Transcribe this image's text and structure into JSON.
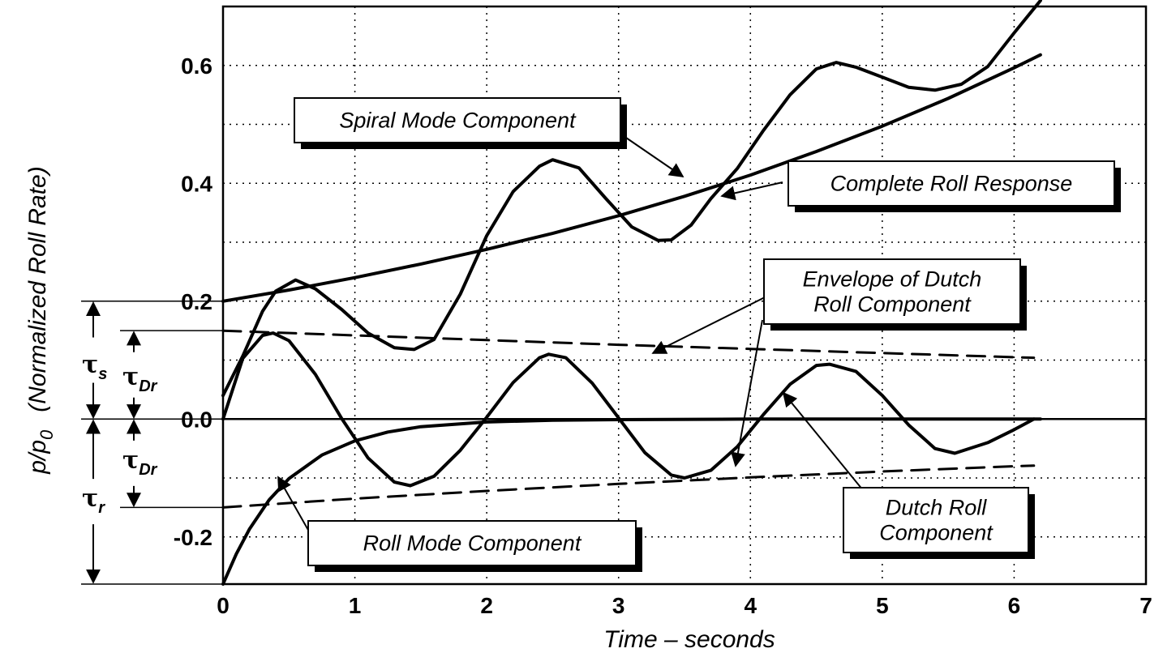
{
  "chart_data": {
    "type": "line",
    "xlabel": "Time – seconds",
    "ylabel_main": "p/p",
    "ylabel_sub": "0",
    "ylabel_note": "(Normalized Roll Rate)",
    "xlim": [
      0,
      7
    ],
    "ylim": [
      -0.28,
      0.7
    ],
    "x_ticks": [
      0,
      1,
      2,
      3,
      4,
      5,
      6,
      7
    ],
    "x_tick_labels": [
      "0",
      "1",
      "2",
      "3",
      "4",
      "5",
      "6",
      "7"
    ],
    "y_ticks": [
      -0.2,
      0.0,
      0.2,
      0.4,
      0.6
    ],
    "y_tick_labels": [
      "-0.2",
      "0.0",
      "0.2",
      "0.4",
      "0.6"
    ],
    "grid": true,
    "series": [
      {
        "name": "Spiral Mode Component",
        "style": "solid",
        "width": 4,
        "x": [
          0,
          0.5,
          1,
          1.5,
          2,
          2.5,
          3,
          3.5,
          4,
          4.5,
          5,
          5.5,
          6,
          6.2
        ],
        "y": [
          0.2,
          0.219,
          0.24,
          0.263,
          0.288,
          0.315,
          0.345,
          0.378,
          0.414,
          0.454,
          0.497,
          0.544,
          0.596,
          0.618
        ]
      },
      {
        "name": "Roll Mode Component",
        "style": "solid",
        "width": 4,
        "x": [
          0,
          0.1,
          0.2,
          0.35,
          0.5,
          0.75,
          1,
          1.25,
          1.5,
          2,
          2.5,
          3,
          4,
          5,
          6,
          6.2
        ],
        "y": [
          -0.28,
          -0.229,
          -0.187,
          -0.137,
          -0.101,
          -0.061,
          -0.037,
          -0.022,
          -0.013,
          -0.005,
          -0.002,
          -0.001,
          0,
          0,
          0,
          0
        ]
      },
      {
        "name": "Dutch Roll Component",
        "style": "solid",
        "width": 4,
        "x": [
          0,
          0.15,
          0.3,
          0.38,
          0.5,
          0.7,
          0.9,
          1.1,
          1.3,
          1.42,
          1.6,
          1.8,
          2,
          2.2,
          2.4,
          2.47,
          2.6,
          2.8,
          3,
          3.2,
          3.4,
          3.5,
          3.7,
          3.9,
          4.1,
          4.3,
          4.5,
          4.6,
          4.8,
          5,
          5.2,
          5.4,
          5.55,
          5.8,
          6,
          6.15
        ],
        "y": [
          0,
          0.103,
          0.142,
          0.146,
          0.133,
          0.076,
          0.001,
          -0.066,
          -0.107,
          -0.113,
          -0.097,
          -0.053,
          0.003,
          0.062,
          0.104,
          0.11,
          0.104,
          0.061,
          0.002,
          -0.057,
          -0.095,
          -0.1,
          -0.087,
          -0.047,
          0.008,
          0.059,
          0.091,
          0.093,
          0.081,
          0.04,
          -0.01,
          -0.05,
          -0.058,
          -0.04,
          -0.018,
          0
        ]
      },
      {
        "name": "Complete Roll Response",
        "style": "solid",
        "width": 4,
        "x": [
          0,
          0.15,
          0.3,
          0.4,
          0.55,
          0.7,
          0.9,
          1.1,
          1.3,
          1.45,
          1.6,
          1.8,
          2,
          2.2,
          2.4,
          2.5,
          2.7,
          2.9,
          3.1,
          3.3,
          3.4,
          3.55,
          3.7,
          3.9,
          4.1,
          4.3,
          4.5,
          4.65,
          4.8,
          5,
          5.2,
          5.4,
          5.6,
          5.8,
          6,
          6.2
        ],
        "y": [
          0.04,
          0.107,
          0.183,
          0.217,
          0.236,
          0.221,
          0.186,
          0.146,
          0.121,
          0.118,
          0.135,
          0.212,
          0.311,
          0.386,
          0.429,
          0.44,
          0.426,
          0.375,
          0.326,
          0.303,
          0.304,
          0.329,
          0.374,
          0.425,
          0.49,
          0.55,
          0.594,
          0.605,
          0.597,
          0.58,
          0.563,
          0.558,
          0.568,
          0.598,
          0.655,
          0.71
        ]
      },
      {
        "name": "Envelope of Dutch Roll Component",
        "style": "dashed",
        "width": 3,
        "x": [
          0,
          1,
          2,
          3,
          4,
          5,
          6,
          6.15
        ],
        "y": [
          0.15,
          0.142,
          0.134,
          0.126,
          0.119,
          0.112,
          0.105,
          0.104
        ]
      },
      {
        "name": "",
        "style": "dashed",
        "width": 3,
        "x": [
          0,
          1,
          2,
          3,
          4,
          5,
          6,
          6.15
        ],
        "y": [
          -0.15,
          -0.135,
          -0.122,
          -0.11,
          -0.099,
          -0.089,
          -0.08,
          -0.079
        ]
      }
    ],
    "callouts": [
      {
        "lines": [
          "Spiral Mode Component"
        ],
        "target": [
          3.45,
          0.41
        ]
      },
      {
        "lines": [
          "Complete Roll Response"
        ],
        "target": [
          3.75,
          0.38
        ]
      },
      {
        "lines": [
          "Envelope of Dutch",
          "Roll Component"
        ],
        "target": [
          3.25,
          0.11
        ]
      },
      {
        "lines": [
          "Roll Mode Component"
        ],
        "target": [
          0.45,
          -0.11
        ]
      },
      {
        "lines": [
          "Dutch Roll",
          "Component"
        ],
        "target": [
          4.2,
          0.045
        ]
      }
    ],
    "time_constants": [
      {
        "symbol": "τ",
        "sub": "s"
      },
      {
        "symbol": "τ",
        "sub": "Dr"
      },
      {
        "symbol": "τ",
        "sub": "Dr"
      },
      {
        "symbol": "τ",
        "sub": "r"
      }
    ]
  }
}
